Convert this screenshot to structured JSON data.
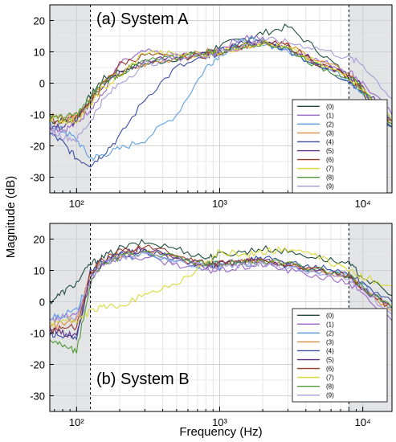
{
  "figure": {
    "xlabel": "Frequency (Hz)",
    "ylabel": "Magnitude (dB)"
  },
  "colors": [
    "#1f4e3d",
    "#9a67c7",
    "#5aa0e0",
    "#e08a3a",
    "#3b4ea0",
    "#5a2e86",
    "#9b3b2a",
    "#dada3a",
    "#4f9a3a",
    "#a89ad8"
  ],
  "chart_data": [
    {
      "type": "line",
      "title": "(a) System A",
      "x_scale": "log",
      "xlim": [
        65,
        16000
      ],
      "ylim": [
        -35,
        25
      ],
      "x_ticks": [
        100,
        1000,
        10000
      ],
      "x_tick_labels": [
        "10²",
        "10³",
        "10⁴"
      ],
      "y_ticks": [
        -30,
        -20,
        -10,
        0,
        10,
        20
      ],
      "shaded_bands": [
        [
          65,
          125
        ],
        [
          8000,
          16000
        ]
      ],
      "dashed_lines_x": [
        125,
        8000
      ],
      "grid": true,
      "legend_position": "lower-right",
      "x": [
        65,
        80,
        100,
        125,
        150,
        200,
        300,
        500,
        800,
        1000,
        1500,
        2000,
        3000,
        5000,
        8000,
        10000,
        16000
      ],
      "series": [
        {
          "name": "(0)",
          "values": [
            -12,
            -12,
            -11,
            -4,
            1,
            4,
            6,
            8,
            10,
            12,
            14,
            16,
            18,
            10,
            2,
            -3,
            -14
          ]
        },
        {
          "name": "(1)",
          "values": [
            -14,
            -15,
            -13,
            -8,
            -4,
            6,
            10,
            9,
            9,
            11,
            15,
            14,
            11,
            7,
            4,
            0,
            -10
          ]
        },
        {
          "name": "(2)",
          "values": [
            -13,
            -15,
            -18,
            -24,
            -23,
            -21,
            -18,
            -10,
            5,
            9,
            14,
            13,
            10,
            6,
            1,
            -3,
            -12
          ]
        },
        {
          "name": "(3)",
          "values": [
            -10,
            -11,
            -10,
            -5,
            0,
            3,
            6,
            8,
            10,
            10,
            12,
            13,
            12,
            7,
            3,
            -2,
            -13
          ]
        },
        {
          "name": "(4)",
          "values": [
            -16,
            -19,
            -24,
            -26,
            -23,
            -17,
            -5,
            5,
            8,
            10,
            13,
            13,
            11,
            5,
            1,
            -3,
            -14
          ]
        },
        {
          "name": "(5)",
          "values": [
            -14,
            -14,
            -12,
            -6,
            -1,
            3,
            7,
            8,
            9,
            10,
            13,
            13,
            12,
            6,
            2,
            -1,
            -12
          ]
        },
        {
          "name": "(6)",
          "values": [
            -12,
            -12,
            -11,
            -6,
            -1,
            6,
            9,
            8,
            9,
            10,
            12,
            13,
            12,
            6,
            2,
            -2,
            -12
          ]
        },
        {
          "name": "(7)",
          "values": [
            -11,
            -12,
            -12,
            -7,
            -2,
            2,
            10,
            9,
            9,
            10,
            12,
            13,
            11,
            6,
            2,
            -2,
            -12
          ]
        },
        {
          "name": "(8)",
          "values": [
            -10,
            -11,
            -10,
            -5,
            0,
            3,
            7,
            8,
            10,
            10,
            12,
            13,
            11,
            5,
            2,
            -2,
            -13
          ]
        },
        {
          "name": "(9)",
          "values": [
            -15,
            -17,
            -18,
            -12,
            -6,
            0,
            6,
            8,
            9,
            10,
            12,
            14,
            13,
            11,
            8,
            6,
            -5
          ]
        }
      ]
    },
    {
      "type": "line",
      "title": "(b) System B",
      "x_scale": "log",
      "xlim": [
        65,
        16000
      ],
      "ylim": [
        -35,
        25
      ],
      "x_ticks": [
        100,
        1000,
        10000
      ],
      "x_tick_labels": [
        "10²",
        "10³",
        "10⁴"
      ],
      "y_ticks": [
        -30,
        -20,
        -10,
        0,
        10,
        20
      ],
      "shaded_bands": [
        [
          65,
          125
        ],
        [
          8000,
          16000
        ]
      ],
      "dashed_lines_x": [
        125,
        8000
      ],
      "grid": true,
      "legend_position": "lower-right",
      "x": [
        65,
        80,
        100,
        125,
        150,
        200,
        300,
        500,
        800,
        1000,
        1500,
        2000,
        3000,
        5000,
        8000,
        10000,
        16000
      ],
      "series": [
        {
          "name": "(0)",
          "values": [
            0,
            3,
            6,
            12,
            14,
            17,
            19,
            17,
            14,
            15,
            16,
            17,
            16,
            14,
            12,
            8,
            2
          ]
        },
        {
          "name": "(1)",
          "values": [
            -6,
            -5,
            -4,
            6,
            12,
            14,
            14,
            12,
            10,
            10,
            11,
            12,
            10,
            8,
            6,
            2,
            -6
          ]
        },
        {
          "name": "(2)",
          "values": [
            -5,
            -4,
            -3,
            8,
            13,
            14,
            15,
            13,
            11,
            11,
            12,
            13,
            11,
            10,
            8,
            5,
            -2
          ]
        },
        {
          "name": "(3)",
          "values": [
            -8,
            -7,
            -6,
            9,
            13,
            15,
            16,
            14,
            12,
            12,
            13,
            13,
            12,
            10,
            8,
            4,
            -3
          ]
        },
        {
          "name": "(4)",
          "values": [
            -10,
            -11,
            -12,
            10,
            13,
            15,
            16,
            14,
            12,
            12,
            13,
            14,
            12,
            11,
            9,
            6,
            0
          ]
        },
        {
          "name": "(5)",
          "values": [
            -9,
            -10,
            -11,
            8,
            12,
            15,
            17,
            14,
            11,
            12,
            13,
            13,
            12,
            10,
            8,
            4,
            -2
          ]
        },
        {
          "name": "(6)",
          "values": [
            -9,
            -8,
            -8,
            9,
            13,
            16,
            18,
            15,
            12,
            12,
            13,
            13,
            12,
            10,
            8,
            4,
            -2
          ]
        },
        {
          "name": "(7)",
          "values": [
            -7,
            -6,
            -6,
            -3,
            -2,
            -1,
            2,
            6,
            12,
            16,
            15,
            16,
            17,
            14,
            10,
            8,
            5
          ]
        },
        {
          "name": "(8)",
          "values": [
            -12,
            -14,
            -16,
            6,
            12,
            14,
            16,
            14,
            12,
            12,
            13,
            13,
            12,
            10,
            8,
            5,
            -2
          ]
        },
        {
          "name": "(9)",
          "values": [
            -6,
            -5,
            -5,
            7,
            12,
            14,
            15,
            13,
            11,
            11,
            12,
            12,
            11,
            9,
            7,
            4,
            -4
          ]
        }
      ]
    }
  ]
}
